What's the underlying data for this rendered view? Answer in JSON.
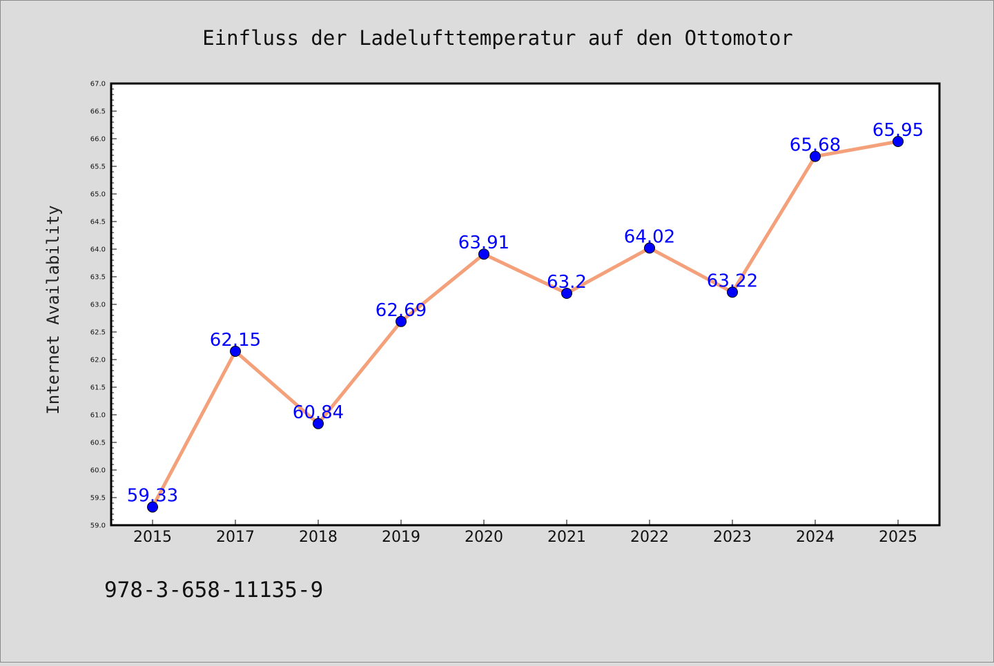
{
  "chart_data": {
    "type": "line",
    "title": "Einfluss der Ladelufttemperatur auf den Ottomotor",
    "xlabel": "",
    "ylabel": "Internet Availability",
    "categories": [
      "2015",
      "2017",
      "2018",
      "2019",
      "2020",
      "2021",
      "2022",
      "2023",
      "2024",
      "2025"
    ],
    "series": [
      {
        "values": [
          59.33,
          62.15,
          60.84,
          62.69,
          63.91,
          63.2,
          64.02,
          63.22,
          65.68,
          65.95
        ],
        "data_labels": [
          "59.33",
          "62.15",
          "60.84",
          "62.69",
          "63.91",
          "63.2",
          "64.02",
          "63.22",
          "65.68",
          "65.95"
        ],
        "line_color": "#f4a07a",
        "marker_color": "#0000ff"
      }
    ],
    "ylim": [
      59.0,
      67.0
    ],
    "yticks": [
      "59.0",
      "59.5",
      "60.0",
      "60.5",
      "61.0",
      "61.5",
      "62.0",
      "62.5",
      "63.0",
      "63.5",
      "64.0",
      "64.5",
      "65.0",
      "65.5",
      "66.0",
      "66.5",
      "67.0"
    ],
    "grid": false,
    "legend": "none"
  },
  "footer": {
    "text": "978-3-658-11135-9"
  },
  "colors": {
    "background": "#dcdcdc",
    "plot_background": "#ffffff",
    "line": "#f4a07a",
    "marker": "#0000ff",
    "data_label": "#0000ff"
  }
}
